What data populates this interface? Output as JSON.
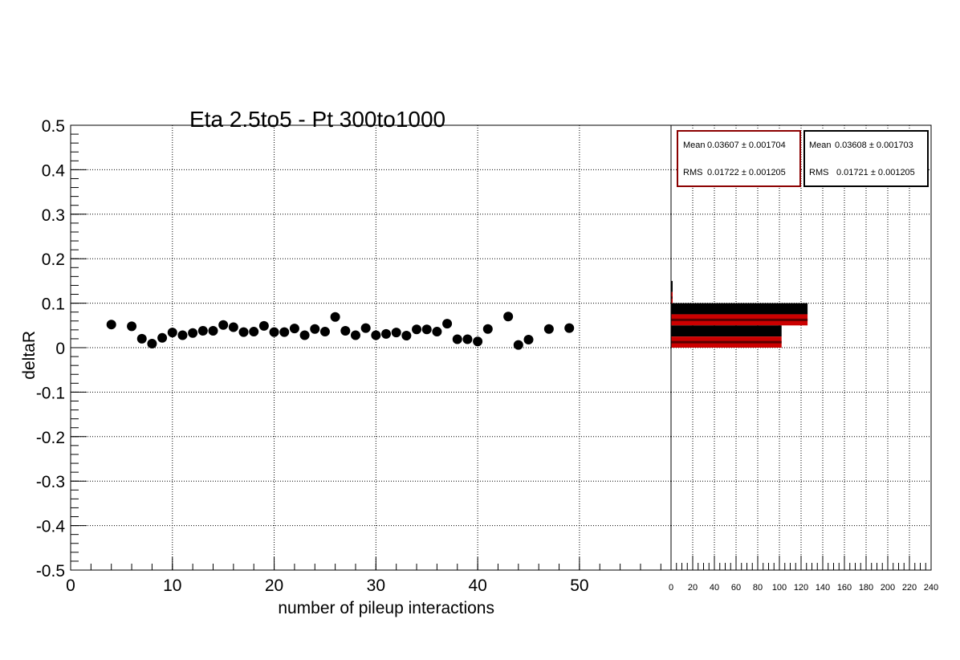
{
  "chart_data": [
    {
      "type": "scatter",
      "title": "Eta 2.5to5 - Pt 300to1000",
      "xlabel": "number of pileup interactions",
      "ylabel": "deltaR",
      "xlim": [
        0,
        59
      ],
      "ylim": [
        -0.5,
        0.5
      ],
      "grid": true,
      "x_tick_labels": [
        "0",
        "10",
        "20",
        "30",
        "40",
        "50"
      ],
      "y_tick_labels": [
        "0.5",
        "0.4",
        "0.3",
        "0.2",
        "0.1",
        "0",
        "-0.1",
        "-0.2",
        "-0.3",
        "-0.4",
        "-0.5"
      ],
      "marker_color": "#000000",
      "series": [
        {
          "x": [
            4,
            6,
            7,
            8,
            9,
            10,
            11,
            12,
            13,
            14,
            15,
            16,
            17,
            18,
            19,
            20,
            21,
            22,
            23,
            24,
            25,
            26,
            27,
            28,
            29,
            30,
            31,
            32,
            33,
            34,
            35,
            36,
            37,
            38,
            39,
            40,
            41,
            43,
            44,
            45,
            47,
            49
          ],
          "y": [
            0.052,
            0.048,
            0.02,
            0.009,
            0.022,
            0.034,
            0.028,
            0.033,
            0.038,
            0.038,
            0.051,
            0.046,
            0.035,
            0.036,
            0.049,
            0.035,
            0.035,
            0.043,
            0.028,
            0.042,
            0.036,
            0.069,
            0.038,
            0.028,
            0.044,
            0.028,
            0.031,
            0.034,
            0.027,
            0.041,
            0.041,
            0.036,
            0.054,
            0.019,
            0.019,
            0.014,
            0.042,
            0.07,
            0.006,
            0.018,
            0.042,
            0.044
          ]
        }
      ]
    },
    {
      "type": "bar",
      "orientation": "horizontal",
      "xlim": [
        0,
        240
      ],
      "ylim": [
        -0.5,
        0.5
      ],
      "grid": true,
      "x_tick_labels": [
        "0",
        "20",
        "40",
        "60",
        "80",
        "100",
        "120",
        "140",
        "160",
        "180",
        "200",
        "220",
        "240"
      ],
      "bin_width": 0.05,
      "series": [
        {
          "color": "#000000",
          "bins": [
            {
              "low": 0.05,
              "high": 0.1,
              "count": 126
            },
            {
              "low": 0.0,
              "high": 0.05,
              "count": 102
            },
            {
              "low": 0.1,
              "high": 0.15,
              "count": 1
            }
          ]
        },
        {
          "color": "#cc0000",
          "bins": [
            {
              "low": 0.05,
              "high": 0.1,
              "count": 126
            },
            {
              "low": 0.0,
              "high": 0.05,
              "count": 102
            },
            {
              "low": 0.1,
              "high": 0.15,
              "count": 1
            }
          ]
        }
      ],
      "stats_boxes": [
        {
          "border_color": "#8b0000",
          "mean_label": "Mean",
          "mean_value": "0.03607 ± 0.001704",
          "rms_label": "RMS",
          "rms_value": "0.01722 ± 0.001205"
        },
        {
          "border_color": "#000000",
          "mean_label": "Mean",
          "mean_value": "0.03608 ± 0.001703",
          "rms_label": "RMS",
          "rms_value": "0.01721 ± 0.001205"
        }
      ]
    }
  ]
}
